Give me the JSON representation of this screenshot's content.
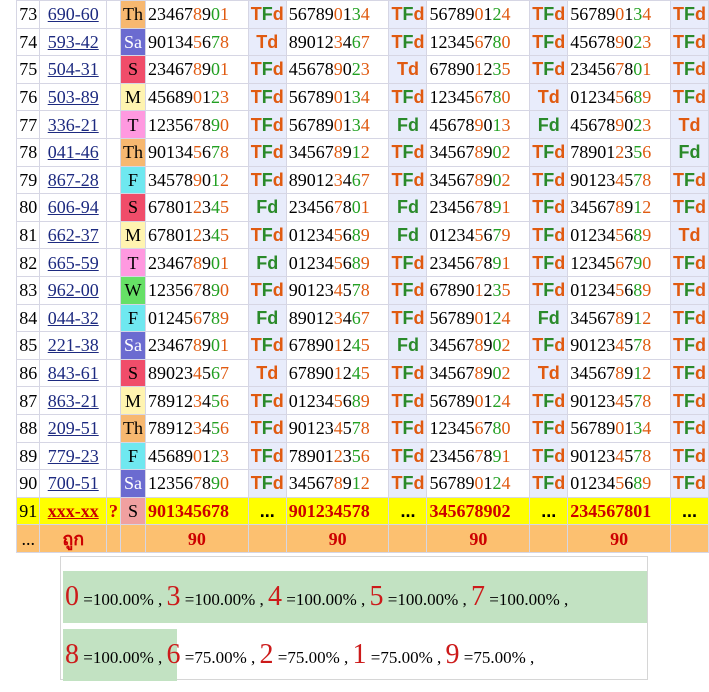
{
  "colors": {
    "day_Th": "#f7b870",
    "day_Sa": "#6b6bd0",
    "day_S": "#f04d6a",
    "day_M": "#fff4b0",
    "day_T": "#ff99e0",
    "day_F": "#6fe8f0",
    "day_W": "#66e066"
  },
  "rows": [
    {
      "n": "73",
      "code": "690-60",
      "day": "Th",
      "d": [
        [
          "234678901",
          "TFd"
        ],
        [
          "567890134",
          "TFd"
        ],
        [
          "567890124",
          "TFd"
        ],
        [
          "567890134",
          "TFd"
        ]
      ]
    },
    {
      "n": "74",
      "code": "593-42",
      "day": "Sa",
      "d": [
        [
          "901345678",
          "Td"
        ],
        [
          "890123467",
          "TFd"
        ],
        [
          "123456780",
          "TFd"
        ],
        [
          "456789023",
          "TFd"
        ]
      ]
    },
    {
      "n": "75",
      "code": "504-31",
      "day": "S",
      "d": [
        [
          "234678901",
          "TFd"
        ],
        [
          "456789023",
          "Td"
        ],
        [
          "678901235",
          "TFd"
        ],
        [
          "234567801",
          "TFd"
        ]
      ]
    },
    {
      "n": "76",
      "code": "503-89",
      "day": "M",
      "d": [
        [
          "456890123",
          "TFd"
        ],
        [
          "567890134",
          "TFd"
        ],
        [
          "123456780",
          "Td"
        ],
        [
          "012345689",
          "TFd"
        ]
      ]
    },
    {
      "n": "77",
      "code": "336-21",
      "day": "T",
      "d": [
        [
          "123567890",
          "TFd"
        ],
        [
          "567890134",
          "Fd"
        ],
        [
          "456789013",
          "Fd"
        ],
        [
          "456789023",
          "Td"
        ]
      ]
    },
    {
      "n": "78",
      "code": "041-46",
      "day": "Th",
      "d": [
        [
          "901345678",
          "TFd"
        ],
        [
          "345678912",
          "TFd"
        ],
        [
          "345678902",
          "TFd"
        ],
        [
          "789012356",
          "Fd"
        ]
      ]
    },
    {
      "n": "79",
      "code": "867-28",
      "day": "F",
      "d": [
        [
          "345789012",
          "TFd"
        ],
        [
          "890123467",
          "TFd"
        ],
        [
          "345678902",
          "TFd"
        ],
        [
          "901234578",
          "TFd"
        ]
      ]
    },
    {
      "n": "80",
      "code": "606-94",
      "day": "S",
      "d": [
        [
          "678012345",
          "Fd"
        ],
        [
          "234567801",
          "Fd"
        ],
        [
          "234567891",
          "TFd"
        ],
        [
          "345678912",
          "TFd"
        ]
      ]
    },
    {
      "n": "81",
      "code": "662-37",
      "day": "M",
      "d": [
        [
          "678012345",
          "TFd"
        ],
        [
          "012345689",
          "Fd"
        ],
        [
          "012345679",
          "TFd"
        ],
        [
          "012345689",
          "Td"
        ]
      ]
    },
    {
      "n": "82",
      "code": "665-59",
      "day": "T",
      "d": [
        [
          "234678901",
          "Fd"
        ],
        [
          "012345689",
          "TFd"
        ],
        [
          "234567891",
          "TFd"
        ],
        [
          "123456790",
          "TFd"
        ]
      ]
    },
    {
      "n": "83",
      "code": "962-00",
      "day": "W",
      "d": [
        [
          "123567890",
          "TFd"
        ],
        [
          "901234578",
          "TFd"
        ],
        [
          "678901235",
          "TFd"
        ],
        [
          "012345689",
          "TFd"
        ]
      ]
    },
    {
      "n": "84",
      "code": "044-32",
      "day": "F",
      "d": [
        [
          "012456789",
          "Fd"
        ],
        [
          "890123467",
          "TFd"
        ],
        [
          "567890124",
          "Fd"
        ],
        [
          "345678912",
          "TFd"
        ]
      ]
    },
    {
      "n": "85",
      "code": "221-38",
      "day": "Sa",
      "d": [
        [
          "234678901",
          "TFd"
        ],
        [
          "678901245",
          "Fd"
        ],
        [
          "345678902",
          "TFd"
        ],
        [
          "901234578",
          "TFd"
        ]
      ]
    },
    {
      "n": "86",
      "code": "843-61",
      "day": "S",
      "d": [
        [
          "890234567",
          "Td"
        ],
        [
          "678901245",
          "TFd"
        ],
        [
          "345678902",
          "Td"
        ],
        [
          "345678912",
          "TFd"
        ]
      ]
    },
    {
      "n": "87",
      "code": "863-21",
      "day": "M",
      "d": [
        [
          "789123456",
          "TFd"
        ],
        [
          "012345689",
          "TFd"
        ],
        [
          "567890124",
          "TFd"
        ],
        [
          "901234578",
          "TFd"
        ]
      ]
    },
    {
      "n": "88",
      "code": "209-51",
      "day": "Th",
      "d": [
        [
          "789123456",
          "TFd"
        ],
        [
          "901234578",
          "TFd"
        ],
        [
          "123456780",
          "TFd"
        ],
        [
          "567890134",
          "TFd"
        ]
      ]
    },
    {
      "n": "89",
      "code": "779-23",
      "day": "F",
      "d": [
        [
          "456890123",
          "TFd"
        ],
        [
          "789012356",
          "TFd"
        ],
        [
          "234567891",
          "TFd"
        ],
        [
          "901234578",
          "TFd"
        ]
      ]
    },
    {
      "n": "90",
      "code": "700-51",
      "day": "Sa",
      "d": [
        [
          "123567890",
          "TFd"
        ],
        [
          "345678912",
          "TFd"
        ],
        [
          "567890124",
          "TFd"
        ],
        [
          "012345689",
          "TFd"
        ]
      ]
    }
  ],
  "current": {
    "n": "91",
    "code": "xxx-xx",
    "q": "?",
    "day": "S",
    "d": [
      "901345678",
      "901234578",
      "345678902",
      "234567801"
    ],
    "dots": "..."
  },
  "totals": {
    "first": "...",
    "label": "ถูก",
    "values": [
      "90",
      "90",
      "90",
      "90"
    ]
  },
  "summary": {
    "line1": [
      {
        "d": "0",
        "p": "=100.00%"
      },
      {
        "d": "3",
        "p": "=100.00%"
      },
      {
        "d": "4",
        "p": "=100.00%"
      },
      {
        "d": "5",
        "p": "=100.00%"
      },
      {
        "d": "7",
        "p": "=100.00%"
      }
    ],
    "line2": [
      {
        "d": "8",
        "p": "=100.00%"
      },
      {
        "d": "6",
        "p": "=75.00%"
      },
      {
        "d": "2",
        "p": "=75.00%"
      },
      {
        "d": "1",
        "p": "=75.00%"
      },
      {
        "d": "9",
        "p": "=75.00%"
      }
    ],
    "sep": ","
  }
}
